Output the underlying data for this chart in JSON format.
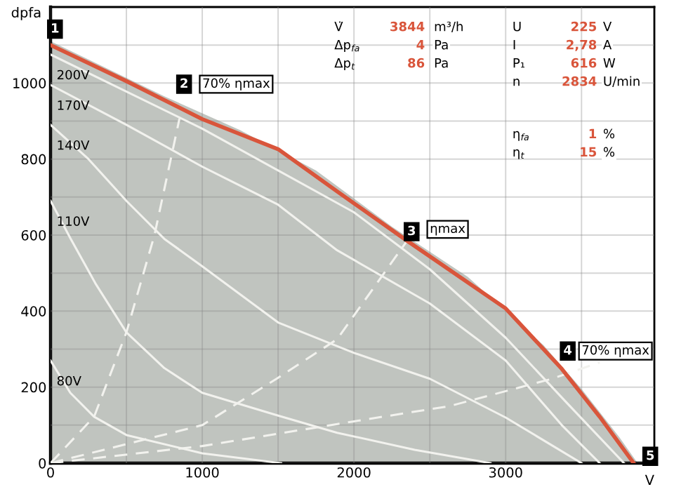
{
  "chart_data": {
    "type": "line",
    "xlabel": "V",
    "ylabel": "dpfa",
    "xlim": [
      0,
      3980
    ],
    "ylim": [
      0,
      1200
    ],
    "xticks": [
      0,
      {
        "value": 500,
        "label": null
      },
      1000,
      {
        "value": 1500,
        "label": null
      },
      2000,
      {
        "value": 2500,
        "label": null
      },
      3000,
      {
        "value": 3500,
        "label": null
      }
    ],
    "yticks": [
      0,
      {
        "value": 100,
        "label": null
      },
      200,
      {
        "value": 300,
        "label": null
      },
      400,
      {
        "value": 500,
        "label": null
      },
      600,
      {
        "value": 700,
        "label": null
      },
      800,
      {
        "value": 900,
        "label": null
      },
      1000,
      {
        "value": 1100,
        "label": null
      }
    ],
    "grid": true,
    "marker": "none",
    "series": [
      {
        "type": "line",
        "color": "#d9553b",
        "x": [
          0,
          500,
          1000,
          1500,
          1889,
          2350,
          3000,
          3370,
          3620,
          3844
        ],
        "values": [
          1100,
          1005,
          905,
          826,
          715,
          585,
          407,
          248,
          122,
          0
        ]
      },
      {
        "type": "area",
        "color": "#c0c4bf",
        "x": [
          0,
          250,
          750,
          1250,
          1750,
          2250,
          2750,
          3250,
          3500,
          3750,
          3870
        ],
        "values": [
          1110,
          1062,
          965,
          876,
          770,
          622,
          490,
          310,
          195,
          68,
          0
        ]
      },
      {
        "name": "200V",
        "color": "#f2f2ee",
        "x": [
          0,
          1000,
          2000,
          2500,
          3000,
          3400,
          3780
        ],
        "values": [
          1075,
          880,
          660,
          510,
          330,
          160,
          0
        ]
      },
      {
        "name": "170V",
        "color": "#f2f2ee",
        "x": [
          0,
          500,
          1000,
          1500,
          1889,
          2500,
          3000,
          3370,
          3620
        ],
        "values": [
          995,
          890,
          780,
          680,
          560,
          420,
          270,
          100,
          0
        ]
      },
      {
        "name": "140V",
        "color": "#f2f2ee",
        "x": [
          0,
          250,
          500,
          750,
          1000,
          1500,
          2000,
          2500,
          3000,
          3500
        ],
        "values": [
          890,
          800,
          690,
          590,
          518,
          370,
          290,
          222,
          120,
          0
        ]
      },
      {
        "name": "110V",
        "color": "#f2f2ee",
        "x": [
          0,
          130,
          300,
          500,
          750,
          1000,
          1500,
          1889,
          2400,
          2900
        ],
        "values": [
          690,
          592,
          470,
          344,
          250,
          185,
          125,
          80,
          35,
          0
        ]
      },
      {
        "name": "80V",
        "color": "#f2f2ee",
        "x": [
          0,
          130,
          287,
          500,
          1000,
          1520
        ],
        "values": [
          270,
          185,
          122,
          74,
          26,
          0
        ]
      },
      {
        "color": "#f2f2ee",
        "line_style": "dashed",
        "x": [
          0,
          287,
          500,
          685,
          850
        ],
        "values": [
          0,
          122,
          344,
          600,
          907
        ]
      },
      {
        "color": "#f2f2ee",
        "line_style": "dashed",
        "x": [
          0,
          1000,
          1490,
          1889,
          2350
        ],
        "values": [
          0,
          100,
          222,
          326,
          585
        ]
      },
      {
        "color": "#f2f2ee",
        "line_style": "dashed",
        "x": [
          0,
          1000,
          2000,
          2630,
          3306,
          3620
        ],
        "values": [
          0,
          45,
          110,
          150,
          222,
          265
        ]
      }
    ],
    "annotations": [
      {
        "text": "1",
        "x": 0,
        "y": 1100
      },
      {
        "text": "2",
        "x": 850,
        "y": 907
      },
      {
        "text": "3",
        "x": 2350,
        "y": 585
      },
      {
        "text": "4",
        "x": 3620,
        "y": 265
      },
      {
        "text": "5",
        "x": 3844,
        "y": 0
      },
      "70% ηmax",
      "ηmax",
      "70% ηmax",
      "V̇ 3844 m³/h",
      "Δp$_{fa}$ 4 Pa",
      "Δp$_{t}$ 86 Pa",
      "U 225 V",
      "I 2,78 A",
      "P₁ 616 W",
      "n 2834 U/min",
      "η$_{fa}$ 1 %",
      "η$_{t}$ 15 %"
    ]
  }
}
